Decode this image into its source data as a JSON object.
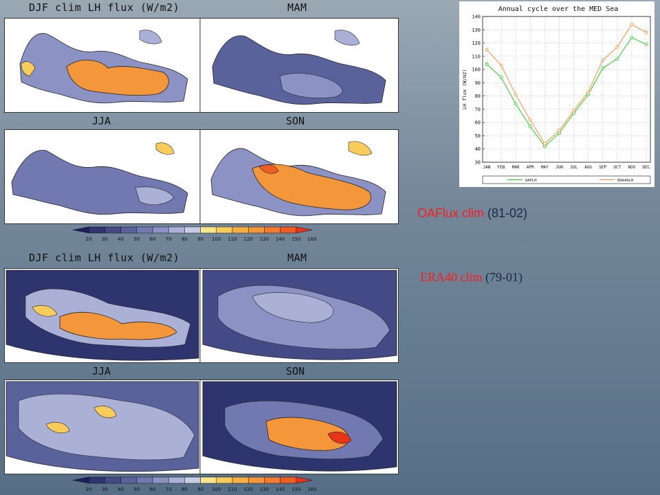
{
  "top_block": {
    "title": "DJF clim LH flux (W/m2)",
    "mam": "MAM",
    "jja": "JJA",
    "son": "SON"
  },
  "bottom_block": {
    "title": "DJF clim LH flux (W/m2)",
    "mam": "MAM",
    "jja": "JJA",
    "son": "SON"
  },
  "colorbar": {
    "ticks": [
      "20",
      "30",
      "40",
      "50",
      "60",
      "70",
      "80",
      "90",
      "100",
      "110",
      "120",
      "130",
      "140",
      "150",
      "160"
    ],
    "colors": [
      "#1a1e5a",
      "#2e346e",
      "#434a86",
      "#5a629c",
      "#7278b0",
      "#8c92c4",
      "#aab0d6",
      "#c8cce6",
      "#f8e68c",
      "#f8cc5a",
      "#f6b042",
      "#f4963a",
      "#f27c2c",
      "#ee5e22",
      "#e83418"
    ]
  },
  "labels": {
    "oa_red": "OAFlux clim",
    "oa_dark": " (81-02)",
    "era_red": "ERA40 clim",
    "era_dark": " (79-01)"
  },
  "chart_data": {
    "type": "line",
    "title": "Annual cycle over the MED Sea",
    "xlabel": "",
    "ylabel": "LH flux (W/m2)",
    "categories": [
      "JAN",
      "FEB",
      "MAR",
      "APR",
      "MAY",
      "JUN",
      "JUL",
      "AUG",
      "SEP",
      "OCT",
      "NOV",
      "DEC"
    ],
    "ylim": [
      30,
      140
    ],
    "yticks": [
      30,
      40,
      50,
      60,
      70,
      80,
      90,
      100,
      110,
      120,
      130,
      140
    ],
    "legend_position": "bottom",
    "series": [
      {
        "name": "OAFLH",
        "color": "#22cc22",
        "values": [
          104,
          94,
          74,
          57,
          42,
          52,
          67,
          81,
          101,
          108,
          124,
          119
        ]
      },
      {
        "name": "ERA40LH",
        "color": "#ff8c3a",
        "values": [
          115,
          103,
          81,
          62,
          44,
          54,
          69,
          83,
          107,
          117,
          134,
          128
        ]
      }
    ]
  }
}
